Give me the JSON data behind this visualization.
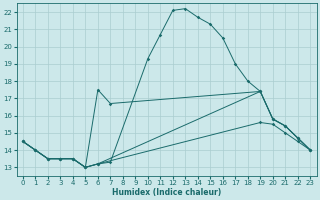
{
  "xlabel": "Humidex (Indice chaleur)",
  "xlim": [
    -0.5,
    23.5
  ],
  "ylim": [
    12.5,
    22.5
  ],
  "xticks": [
    0,
    1,
    2,
    3,
    4,
    5,
    6,
    7,
    8,
    9,
    10,
    11,
    12,
    13,
    14,
    15,
    16,
    17,
    18,
    19,
    20,
    21,
    22,
    23
  ],
  "yticks": [
    13,
    14,
    15,
    16,
    17,
    18,
    19,
    20,
    21,
    22
  ],
  "background_color": "#cce8ea",
  "grid_color": "#aacdd0",
  "line_color": "#1a6b6b",
  "series": [
    {
      "x": [
        0,
        1,
        2,
        3,
        4,
        5,
        6,
        7,
        10,
        11,
        12,
        13,
        14,
        15,
        16,
        17,
        18,
        19,
        20,
        21,
        22,
        23
      ],
      "y": [
        14.5,
        14.0,
        13.5,
        13.5,
        13.5,
        13.0,
        13.2,
        13.3,
        19.3,
        20.7,
        22.1,
        22.2,
        21.7,
        21.3,
        20.5,
        19.0,
        18.0,
        17.4,
        15.8,
        15.4,
        14.7,
        14.0
      ]
    },
    {
      "x": [
        0,
        1,
        2,
        3,
        4,
        5,
        6,
        19,
        20,
        21,
        22,
        23
      ],
      "y": [
        14.5,
        14.0,
        13.5,
        13.5,
        13.5,
        13.0,
        13.2,
        17.4,
        15.8,
        15.4,
        14.7,
        14.0
      ]
    },
    {
      "x": [
        0,
        1,
        2,
        3,
        4,
        5,
        6,
        19,
        20,
        21,
        22,
        23
      ],
      "y": [
        14.5,
        14.0,
        13.5,
        13.5,
        13.5,
        13.0,
        13.2,
        15.6,
        15.5,
        15.0,
        14.5,
        14.0
      ]
    },
    {
      "x": [
        0,
        1,
        2,
        3,
        4,
        5,
        6,
        7,
        19,
        20,
        21,
        22,
        23
      ],
      "y": [
        14.5,
        14.0,
        13.5,
        13.5,
        13.5,
        13.0,
        17.5,
        16.7,
        17.4,
        15.8,
        15.4,
        14.7,
        14.0
      ]
    }
  ]
}
